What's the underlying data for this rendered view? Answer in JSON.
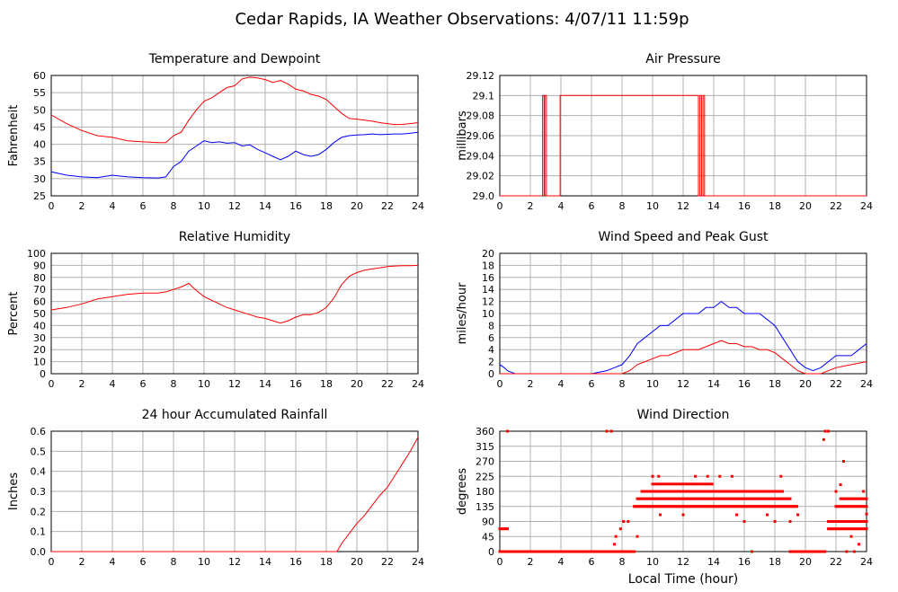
{
  "page": {
    "title": "Cedar Rapids, IA Weather Observations: 4/07/11 11:59p",
    "xlabel": "Local Time (hour)"
  },
  "colors": {
    "red": "#ff0000",
    "blue": "#0000ff",
    "grid": "#b0b0b0",
    "axis": "#000000"
  },
  "chart_data": [
    {
      "type": "line",
      "title": "Temperature and Dewpoint",
      "ylabel": "Fahrenheit",
      "xlim": [
        0,
        24
      ],
      "ylim": [
        25,
        60
      ],
      "xticks": [
        0,
        2,
        4,
        6,
        8,
        10,
        12,
        14,
        16,
        18,
        20,
        22,
        24
      ],
      "yticks": [
        25,
        30,
        35,
        40,
        45,
        50,
        55,
        60
      ],
      "series": [
        {
          "color": "#ff0000",
          "x": [
            0,
            1,
            2,
            3,
            4,
            5,
            6,
            7,
            7.5,
            8,
            8.5,
            9,
            9.5,
            10,
            10.5,
            11,
            11.5,
            12,
            12.5,
            13,
            13.5,
            14,
            14.5,
            15,
            15.5,
            16,
            16.5,
            17,
            17.5,
            18,
            18.5,
            19,
            19.5,
            20,
            20.5,
            21,
            21.5,
            22,
            22.5,
            23,
            23.5,
            24
          ],
          "y": [
            48.5,
            46,
            44,
            42.5,
            42,
            41,
            40.7,
            40.5,
            40.5,
            42.5,
            43.5,
            47,
            50,
            52.5,
            53.5,
            55,
            56.5,
            57,
            59,
            59.5,
            59.3,
            58.8,
            58,
            58.5,
            57.5,
            56,
            55.5,
            54.5,
            54,
            53,
            51,
            49,
            47.5,
            47.3,
            47,
            46.7,
            46.3,
            46,
            45.7,
            45.8,
            46,
            46.3
          ]
        },
        {
          "color": "#0000ff",
          "x": [
            0,
            1,
            2,
            3,
            4,
            5,
            6,
            7,
            7.5,
            8,
            8.5,
            9,
            9.5,
            10,
            10.5,
            11,
            11.5,
            12,
            12.5,
            13,
            13.5,
            14,
            14.5,
            15,
            15.5,
            16,
            16.5,
            17,
            17.5,
            18,
            18.5,
            19,
            19.5,
            20,
            20.5,
            21,
            21.5,
            22,
            22.5,
            23,
            23.5,
            24
          ],
          "y": [
            32,
            31,
            30.5,
            30.3,
            31,
            30.5,
            30.3,
            30.2,
            30.5,
            33.5,
            35,
            38,
            39.5,
            41,
            40.5,
            40.7,
            40.3,
            40.5,
            39.5,
            39.8,
            38.5,
            37.5,
            36.5,
            35.5,
            36.5,
            38,
            37,
            36.5,
            37,
            38.5,
            40.5,
            42,
            42.5,
            42.7,
            42.8,
            43,
            42.8,
            42.9,
            43,
            43,
            43.2,
            43.5
          ]
        }
      ]
    },
    {
      "type": "line",
      "title": "Air Pressure",
      "ylabel": "millibars",
      "xlim": [
        0,
        24
      ],
      "ylim": [
        29.0,
        29.12
      ],
      "xticks": [
        0,
        2,
        4,
        6,
        8,
        10,
        12,
        14,
        16,
        18,
        20,
        22,
        24
      ],
      "yticks": [
        "29.0",
        "29.02",
        "29.04",
        "29.06",
        "29.08",
        "29.1",
        "29.12"
      ],
      "series": [
        {
          "color": "#ff0000",
          "x": [
            0,
            2.8,
            2.8,
            2.9,
            2.9,
            2.95,
            2.95,
            3.05,
            3.05,
            3.95,
            3.95,
            4.05,
            4.05,
            13,
            13,
            13.1,
            13.1,
            13.2,
            13.2,
            13.3,
            13.3,
            13.4,
            13.4,
            13.5,
            13.5,
            24
          ],
          "y": [
            29.0,
            29.0,
            29.1,
            29.1,
            29.0,
            29.0,
            29.1,
            29.1,
            29.0,
            29.0,
            29.1,
            29.1,
            29.1,
            29.1,
            29.0,
            29.0,
            29.1,
            29.1,
            29.0,
            29.0,
            29.1,
            29.1,
            29.0,
            29.0,
            29.0,
            29.0
          ]
        }
      ]
    },
    {
      "type": "line",
      "title": "Relative Humidity",
      "ylabel": "Percent",
      "xlim": [
        0,
        24
      ],
      "ylim": [
        0,
        100
      ],
      "xticks": [
        0,
        2,
        4,
        6,
        8,
        10,
        12,
        14,
        16,
        18,
        20,
        22,
        24
      ],
      "yticks": [
        0,
        10,
        20,
        30,
        40,
        50,
        60,
        70,
        80,
        90,
        100
      ],
      "series": [
        {
          "color": "#ff0000",
          "x": [
            0,
            1,
            2,
            3,
            4,
            5,
            6,
            7,
            7.5,
            8,
            8.5,
            9,
            9.5,
            10,
            10.5,
            11,
            11.5,
            12,
            12.5,
            13,
            13.5,
            14,
            14.5,
            15,
            15.5,
            16,
            16.5,
            17,
            17.5,
            18,
            18.5,
            19,
            19.5,
            20,
            20.5,
            21,
            21.5,
            22,
            22.5,
            23,
            23.5,
            24
          ],
          "y": [
            53,
            55,
            58,
            62,
            64,
            66,
            67,
            67,
            68,
            70,
            72,
            75,
            69,
            64,
            61,
            58,
            55,
            53,
            51,
            49,
            47,
            46,
            44,
            42,
            44,
            47,
            49,
            49,
            51,
            55,
            63,
            74,
            81,
            84,
            86,
            87,
            88,
            89,
            89.5,
            89.7,
            89.8,
            90
          ]
        }
      ]
    },
    {
      "type": "line",
      "title": "Wind Speed and Peak Gust",
      "ylabel": "miles/hour",
      "xlim": [
        0,
        24
      ],
      "ylim": [
        0,
        20
      ],
      "xticks": [
        0,
        2,
        4,
        6,
        8,
        10,
        12,
        14,
        16,
        18,
        20,
        22,
        24
      ],
      "yticks": [
        0,
        2,
        4,
        6,
        8,
        10,
        12,
        14,
        16,
        18,
        20
      ],
      "series": [
        {
          "color": "#0000ff",
          "x": [
            0,
            0.3,
            0.5,
            1,
            2,
            4,
            6,
            7,
            7.5,
            8,
            8.5,
            9,
            9.5,
            10,
            10.5,
            11,
            11.5,
            12,
            12.5,
            13,
            13.5,
            14,
            14.5,
            15,
            15.5,
            16,
            16.5,
            17,
            17.5,
            18,
            18.5,
            19,
            19.5,
            20,
            20.5,
            21,
            21.5,
            22,
            22.5,
            23,
            23.5,
            24
          ],
          "y": [
            1.5,
            1,
            0.5,
            0,
            0,
            0,
            0,
            0.5,
            1,
            1.5,
            3,
            5,
            6,
            7,
            8,
            8,
            9,
            10,
            10,
            10,
            11,
            11,
            12,
            11,
            11,
            10,
            10,
            10,
            9,
            8,
            6,
            4,
            2,
            1,
            0.5,
            1,
            2,
            3,
            3,
            3,
            4,
            5
          ]
        },
        {
          "color": "#ff0000",
          "x": [
            0,
            1,
            2,
            4,
            6,
            7,
            8,
            8.5,
            9,
            9.5,
            10,
            10.5,
            11,
            11.5,
            12,
            12.5,
            13,
            13.5,
            14,
            14.5,
            15,
            15.5,
            16,
            16.5,
            17,
            17.5,
            18,
            18.5,
            19,
            19.5,
            20,
            21,
            22,
            23,
            24
          ],
          "y": [
            0,
            0,
            0,
            0,
            0,
            0,
            0,
            0.5,
            1.5,
            2,
            2.5,
            3,
            3,
            3.5,
            4,
            4,
            4,
            4.5,
            5,
            5.5,
            5,
            5,
            4.5,
            4.5,
            4,
            4,
            3.5,
            2.5,
            1.5,
            0.5,
            0,
            0,
            1,
            1.5,
            2
          ]
        }
      ]
    },
    {
      "type": "line",
      "title": "24 hour Accumulated Rainfall",
      "ylabel": "Inches",
      "xlim": [
        0,
        24
      ],
      "ylim": [
        0,
        0.6
      ],
      "xticks": [
        0,
        2,
        4,
        6,
        8,
        10,
        12,
        14,
        16,
        18,
        20,
        22,
        24
      ],
      "yticks": [
        "0.0",
        "0.1",
        "0.2",
        "0.3",
        "0.4",
        "0.5",
        "0.6"
      ],
      "series": [
        {
          "color": "#ff0000",
          "x": [
            0,
            18.7,
            19,
            19.5,
            20,
            20.5,
            21,
            21.5,
            22,
            22.5,
            23,
            23.5,
            24
          ],
          "y": [
            0,
            0,
            0.04,
            0.09,
            0.14,
            0.18,
            0.23,
            0.28,
            0.32,
            0.38,
            0.44,
            0.5,
            0.57
          ]
        }
      ]
    },
    {
      "type": "scatter",
      "title": "Wind Direction",
      "ylabel": "degrees",
      "xlabel": "Local Time (hour)",
      "xlim": [
        0,
        24
      ],
      "ylim": [
        0,
        360
      ],
      "xticks": [
        0,
        2,
        4,
        6,
        8,
        10,
        12,
        14,
        16,
        18,
        20,
        22,
        24
      ],
      "yticks": [
        0,
        45,
        90,
        135,
        180,
        225,
        270,
        315,
        360
      ],
      "series": [
        {
          "color": "#ff0000",
          "bands": [
            {
              "x0": 0.0,
              "x1": 8.8,
              "y": 0,
              "step": 0.05
            },
            {
              "x0": 0.0,
              "x1": 0.5,
              "y": 68,
              "step": 0.1
            },
            {
              "x0": 8.8,
              "x1": 19.5,
              "y": 135,
              "step": 0.08
            },
            {
              "x0": 9.0,
              "x1": 19.0,
              "y": 158,
              "step": 0.1
            },
            {
              "x0": 9.3,
              "x1": 18.5,
              "y": 180,
              "step": 0.1
            },
            {
              "x0": 10.0,
              "x1": 14.0,
              "y": 202,
              "step": 0.15
            },
            {
              "x0": 19.0,
              "x1": 21.3,
              "y": 0,
              "step": 0.06
            },
            {
              "x0": 21.5,
              "x1": 24.0,
              "y": 68,
              "step": 0.1
            },
            {
              "x0": 21.5,
              "x1": 24.0,
              "y": 90,
              "step": 0.1
            },
            {
              "x0": 22.0,
              "x1": 24.0,
              "y": 135,
              "step": 0.1
            },
            {
              "x0": 22.3,
              "x1": 24.0,
              "y": 158,
              "step": 0.1
            }
          ],
          "points": [
            [
              0.5,
              360
            ],
            [
              7.0,
              360
            ],
            [
              7.3,
              360
            ],
            [
              7.5,
              22
            ],
            [
              7.6,
              45
            ],
            [
              7.9,
              68
            ],
            [
              8.1,
              90
            ],
            [
              8.4,
              90
            ],
            [
              9.0,
              45
            ],
            [
              10.0,
              225
            ],
            [
              10.4,
              225
            ],
            [
              12.8,
              225
            ],
            [
              13.6,
              225
            ],
            [
              14.4,
              225
            ],
            [
              15.2,
              225
            ],
            [
              18.4,
              225
            ],
            [
              10.5,
              110
            ],
            [
              12.0,
              110
            ],
            [
              15.5,
              110
            ],
            [
              16.0,
              90
            ],
            [
              17.5,
              110
            ],
            [
              18.0,
              90
            ],
            [
              19.0,
              90
            ],
            [
              19.5,
              110
            ],
            [
              16.5,
              0
            ],
            [
              21.3,
              360
            ],
            [
              21.5,
              360
            ],
            [
              21.2,
              335
            ],
            [
              22.5,
              270
            ],
            [
              22.0,
              180
            ],
            [
              22.3,
              200
            ],
            [
              23.0,
              45
            ],
            [
              23.5,
              22
            ],
            [
              24.0,
              112
            ],
            [
              23.8,
              180
            ],
            [
              22.7,
              0
            ],
            [
              23.2,
              0
            ]
          ]
        }
      ]
    }
  ]
}
